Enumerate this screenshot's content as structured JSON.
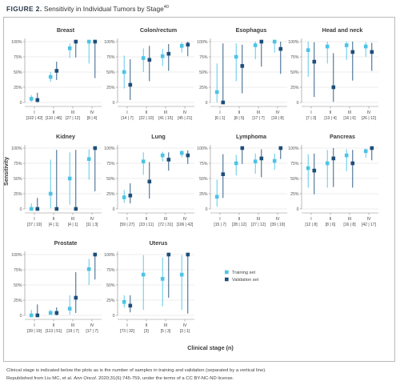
{
  "figure": {
    "label": "FIGURE 2.",
    "title": "Sensitivity in Individual Tumors by Stage",
    "title_ref": "40"
  },
  "caption": {
    "line1": "Clinical stage is indicated below the plots as is the number of samples in training and validation (separated by a vertical line).",
    "line2_pre": "Republished from Liu MC, et al. ",
    "line2_journal": "Ann Oncol",
    "line2_post": ". 2020;31(6):745-759, under the terms of a CC BY-NC-ND license."
  },
  "colors": {
    "training": "#4dc3e7",
    "validation": "#1d4e79",
    "grid": "#dedede",
    "axis": "#8c8c8c",
    "text": "#3a3a3a"
  },
  "chart_data": {
    "type": "scatter",
    "ylabel": "Sensitivity",
    "xlabel": "Clinical stage (n)",
    "yticks": [
      "0",
      "25%",
      "50%",
      "75%",
      "100%"
    ],
    "ylim": [
      0,
      100
    ],
    "grid": true,
    "legend": [
      {
        "name": "Training set",
        "color": "#4dc3e7"
      },
      {
        "name": "Validation set",
        "color": "#1d4e79"
      }
    ],
    "legend_placement": "bottom-right",
    "panels": [
      {
        "title": "Breast",
        "stages": [
          "I",
          "II",
          "III",
          "IV"
        ],
        "counts": [
          "[102 | 42]",
          "[110 | 46]",
          "[27 | 12]",
          "[8 | 4]"
        ],
        "training": [
          {
            "y": 6,
            "lo": 1,
            "hi": 12
          },
          {
            "y": 42,
            "lo": 34,
            "hi": 50
          },
          {
            "y": 89,
            "lo": 73,
            "hi": 97
          },
          {
            "y": 100,
            "lo": 64,
            "hi": 100
          }
        ],
        "validation": [
          {
            "y": 4,
            "lo": 0,
            "hi": 16
          },
          {
            "y": 52,
            "lo": 37,
            "hi": 67
          },
          {
            "y": 100,
            "lo": 74,
            "hi": 100
          },
          {
            "y": 100,
            "lo": 40,
            "hi": 100
          }
        ]
      },
      {
        "title": "Colon/rectum",
        "stages": [
          "I",
          "II",
          "III",
          "IV"
        ],
        "counts": [
          "[14 | 7]",
          "[22 | 10]",
          "[41 | 15]",
          "[45 | 21]"
        ],
        "training": [
          {
            "y": 50,
            "lo": 23,
            "hi": 77
          },
          {
            "y": 73,
            "lo": 50,
            "hi": 89
          },
          {
            "y": 76,
            "lo": 60,
            "hi": 88
          },
          {
            "y": 93,
            "lo": 82,
            "hi": 99
          }
        ],
        "validation": [
          {
            "y": 29,
            "lo": 4,
            "hi": 71
          },
          {
            "y": 70,
            "lo": 35,
            "hi": 93
          },
          {
            "y": 80,
            "lo": 52,
            "hi": 96
          },
          {
            "y": 95,
            "lo": 76,
            "hi": 100
          }
        ]
      },
      {
        "title": "Esophagus",
        "stages": [
          "I",
          "II",
          "III",
          "IV"
        ],
        "counts": [
          "[6 | 1]",
          "[8 | 5]",
          "[17 | 7]",
          "[19 | 8]"
        ],
        "training": [
          {
            "y": 17,
            "lo": 0,
            "hi": 64
          },
          {
            "y": 75,
            "lo": 35,
            "hi": 97
          },
          {
            "y": 94,
            "lo": 71,
            "hi": 100
          },
          {
            "y": 100,
            "lo": 82,
            "hi": 100
          }
        ],
        "validation": [
          {
            "y": 0,
            "lo": 0,
            "hi": 97
          },
          {
            "y": 60,
            "lo": 15,
            "hi": 95
          },
          {
            "y": 100,
            "lo": 59,
            "hi": 100
          },
          {
            "y": 88,
            "lo": 47,
            "hi": 100
          }
        ]
      },
      {
        "title": "Head and neck",
        "stages": [
          "I",
          "II",
          "III",
          "IV"
        ],
        "counts": [
          "[7 | 3]",
          "[13 | 4]",
          "[16 | 6]",
          "[26 | 12]"
        ],
        "training": [
          {
            "y": 86,
            "lo": 42,
            "hi": 100
          },
          {
            "y": 92,
            "lo": 64,
            "hi": 100
          },
          {
            "y": 94,
            "lo": 70,
            "hi": 100
          },
          {
            "y": 92,
            "lo": 75,
            "hi": 99
          }
        ],
        "validation": [
          {
            "y": 67,
            "lo": 9,
            "hi": 99
          },
          {
            "y": 25,
            "lo": 1,
            "hi": 81
          },
          {
            "y": 83,
            "lo": 36,
            "hi": 100
          },
          {
            "y": 83,
            "lo": 52,
            "hi": 98
          }
        ]
      },
      {
        "title": "Kidney",
        "stages": [
          "I",
          "II",
          "III",
          "IV"
        ],
        "counts": [
          "[37 | 19]",
          "[4 | 1]",
          "[4 | 1]",
          "[11 | 3]"
        ],
        "training": [
          {
            "y": 0,
            "lo": 0,
            "hi": 9
          },
          {
            "y": 25,
            "lo": 1,
            "hi": 81
          },
          {
            "y": 50,
            "lo": 7,
            "hi": 93
          },
          {
            "y": 82,
            "lo": 48,
            "hi": 98
          }
        ],
        "validation": [
          {
            "y": 0,
            "lo": 0,
            "hi": 18
          },
          {
            "y": 0,
            "lo": 0,
            "hi": 97
          },
          {
            "y": 0,
            "lo": 0,
            "hi": 97
          },
          {
            "y": 100,
            "lo": 29,
            "hi": 100
          }
        ]
      },
      {
        "title": "Lung",
        "stages": [
          "I",
          "II",
          "III",
          "IV"
        ],
        "counts": [
          "[59 | 27]",
          "[23 | 11]",
          "[72 | 31]",
          "[106 | 42]"
        ],
        "training": [
          {
            "y": 19,
            "lo": 10,
            "hi": 31
          },
          {
            "y": 78,
            "lo": 56,
            "hi": 93
          },
          {
            "y": 88,
            "lo": 78,
            "hi": 94
          },
          {
            "y": 92,
            "lo": 85,
            "hi": 96
          }
        ],
        "validation": [
          {
            "y": 22,
            "lo": 9,
            "hi": 42
          },
          {
            "y": 45,
            "lo": 17,
            "hi": 77
          },
          {
            "y": 81,
            "lo": 63,
            "hi": 93
          },
          {
            "y": 88,
            "lo": 74,
            "hi": 96
          }
        ]
      },
      {
        "title": "Lymphoma",
        "stages": [
          "I",
          "II",
          "III",
          "IV"
        ],
        "counts": [
          "[15 | 7]",
          "[28 | 12]",
          "[27 | 12]",
          "[39 | 19]"
        ],
        "training": [
          {
            "y": 20,
            "lo": 4,
            "hi": 48
          },
          {
            "y": 75,
            "lo": 55,
            "hi": 89
          },
          {
            "y": 78,
            "lo": 58,
            "hi": 91
          },
          {
            "y": 79,
            "lo": 64,
            "hi": 91
          }
        ],
        "validation": [
          {
            "y": 57,
            "lo": 18,
            "hi": 90
          },
          {
            "y": 100,
            "lo": 74,
            "hi": 100
          },
          {
            "y": 83,
            "lo": 52,
            "hi": 98
          },
          {
            "y": 100,
            "lo": 82,
            "hi": 100
          }
        ]
      },
      {
        "title": "Pancreas",
        "stages": [
          "I",
          "II",
          "III",
          "IV"
        ],
        "counts": [
          "[12 | 8]",
          "[8 | 6]",
          "[16 | 8]",
          "[42 | 17]"
        ],
        "training": [
          {
            "y": 67,
            "lo": 35,
            "hi": 90
          },
          {
            "y": 75,
            "lo": 35,
            "hi": 97
          },
          {
            "y": 88,
            "lo": 62,
            "hi": 98
          },
          {
            "y": 95,
            "lo": 84,
            "hi": 99
          }
        ],
        "validation": [
          {
            "y": 63,
            "lo": 24,
            "hi": 91
          },
          {
            "y": 83,
            "lo": 36,
            "hi": 100
          },
          {
            "y": 75,
            "lo": 35,
            "hi": 97
          },
          {
            "y": 100,
            "lo": 80,
            "hi": 100
          }
        ]
      },
      {
        "title": "Prostate",
        "stages": [
          "I",
          "II",
          "III",
          "IV"
        ],
        "counts": [
          "[39 | 19]",
          "[113 | 51]",
          "[19 | 7]",
          "[17 | 7]"
        ],
        "training": [
          {
            "y": 0,
            "lo": 0,
            "hi": 9
          },
          {
            "y": 4,
            "lo": 1,
            "hi": 9
          },
          {
            "y": 11,
            "lo": 1,
            "hi": 33
          },
          {
            "y": 76,
            "lo": 50,
            "hi": 93
          }
        ],
        "validation": [
          {
            "y": 0,
            "lo": 0,
            "hi": 18
          },
          {
            "y": 4,
            "lo": 0,
            "hi": 13
          },
          {
            "y": 29,
            "lo": 4,
            "hi": 71
          },
          {
            "y": 100,
            "lo": 59,
            "hi": 100
          }
        ]
      },
      {
        "title": "Uterus",
        "stages": [
          "I",
          "II",
          "III",
          "IV"
        ],
        "counts": [
          "[73 | 32]",
          "[3]",
          "[5 | 3]",
          "[3 | 1]"
        ],
        "training": [
          {
            "y": 22,
            "lo": 13,
            "hi": 33
          },
          {
            "y": 67,
            "lo": 9,
            "hi": 99
          },
          {
            "y": 60,
            "lo": 15,
            "hi": 95
          },
          {
            "y": 67,
            "lo": 9,
            "hi": 99
          }
        ],
        "validation": [
          {
            "y": 16,
            "lo": 5,
            "hi": 33
          },
          null,
          {
            "y": 100,
            "lo": 29,
            "hi": 100
          },
          {
            "y": 100,
            "lo": 3,
            "hi": 100
          }
        ]
      }
    ]
  }
}
